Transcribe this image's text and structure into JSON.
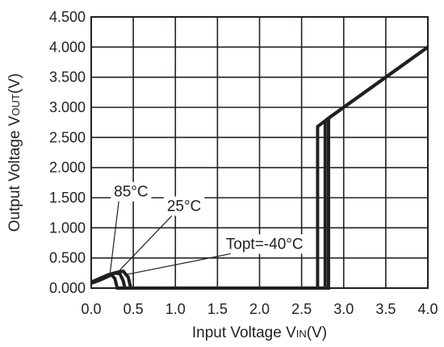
{
  "chart_data": {
    "type": "line",
    "xlabel": {
      "main": "Input Voltage V",
      "sub": "IN",
      "tail": "(V)"
    },
    "ylabel": {
      "main": "Output Voltage V",
      "sub": "OUT",
      "tail": "(V)"
    },
    "xlim": [
      0.0,
      4.0
    ],
    "ylim": [
      0.0,
      4.5
    ],
    "xticks": [
      "0.0",
      "0.5",
      "1.0",
      "1.5",
      "2.0",
      "2.5",
      "3.0",
      "3.5",
      "4.0"
    ],
    "yticks": [
      "0.000",
      "0.500",
      "1.000",
      "1.500",
      "2.000",
      "2.500",
      "3.000",
      "3.500",
      "4.000",
      "4.500"
    ],
    "grid": true,
    "series": [
      {
        "name": "Topt=-40°C",
        "points": [
          [
            0.0,
            0.1
          ],
          [
            0.1,
            0.16
          ],
          [
            0.2,
            0.22
          ],
          [
            0.3,
            0.26
          ],
          [
            0.38,
            0.28
          ],
          [
            0.44,
            0.18
          ],
          [
            0.47,
            0.0
          ],
          [
            2.82,
            0.0
          ],
          [
            2.82,
            2.8
          ],
          [
            2.83,
            2.83
          ],
          [
            4.0,
            4.0
          ]
        ]
      },
      {
        "name": "25°C",
        "points": [
          [
            0.0,
            0.09
          ],
          [
            0.1,
            0.15
          ],
          [
            0.2,
            0.2
          ],
          [
            0.28,
            0.25
          ],
          [
            0.34,
            0.24
          ],
          [
            0.38,
            0.12
          ],
          [
            0.4,
            0.0
          ],
          [
            2.78,
            0.0
          ],
          [
            2.78,
            2.77
          ],
          [
            2.8,
            2.8
          ],
          [
            4.0,
            4.0
          ]
        ]
      },
      {
        "name": "85°C",
        "points": [
          [
            0.0,
            0.08
          ],
          [
            0.1,
            0.13
          ],
          [
            0.18,
            0.18
          ],
          [
            0.24,
            0.22
          ],
          [
            0.28,
            0.16
          ],
          [
            0.31,
            0.0
          ],
          [
            2.69,
            0.0
          ],
          [
            2.69,
            2.68
          ],
          [
            2.81,
            2.81
          ],
          [
            4.0,
            4.0
          ]
        ]
      }
    ],
    "annotations": [
      {
        "text": "85°C",
        "label_xy": [
          0.27,
          1.52
        ],
        "target": [
          0.22,
          0.2
        ]
      },
      {
        "text": "25°C",
        "label_xy": [
          0.9,
          1.28
        ],
        "target": [
          0.3,
          0.24
        ]
      },
      {
        "text": "Topt=-40°C",
        "label_xy": [
          1.6,
          0.65
        ],
        "target": [
          0.4,
          0.22
        ]
      }
    ]
  }
}
